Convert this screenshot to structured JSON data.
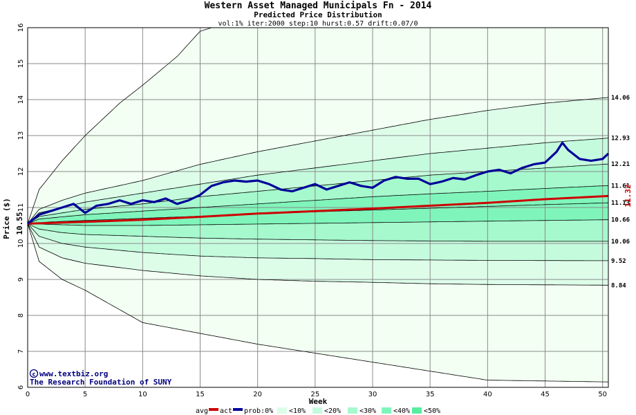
{
  "chart_data": {
    "type": "line",
    "title": "Western Asset Managed Municipals Fn - 2014",
    "subtitle": "Predicted Price Distribution",
    "params": "vol:1% iter:2000 step:10 hurst:0.57 drift:0.07/0",
    "xlabel": "Week",
    "ylabel": "Price ($)",
    "xlim": [
      0,
      50.5
    ],
    "ylim": [
      6,
      16
    ],
    "xticks": [
      0,
      5,
      10,
      15,
      20,
      25,
      30,
      35,
      40,
      45,
      50
    ],
    "yticks": [
      6,
      7,
      8,
      9,
      10,
      11,
      12,
      13,
      14,
      15,
      16
    ],
    "grid": true,
    "start_price": 10.55,
    "start_price_label": "10.55",
    "end_avg_label": "11.32",
    "band_colors": [
      "#f2fff2",
      "#ddfde9",
      "#c4fbdd",
      "#a6f8cd",
      "#80f5bb",
      "#55ee9f"
    ],
    "percentile_curves": [
      {
        "label": "",
        "points": [
          [
            0,
            10.55
          ],
          [
            1,
            11.5
          ],
          [
            3,
            12.3
          ],
          [
            5,
            13.0
          ],
          [
            8,
            13.9
          ],
          [
            10,
            14.4
          ],
          [
            13,
            15.2
          ],
          [
            15,
            15.9
          ],
          [
            16,
            16.0
          ],
          [
            50.5,
            16.0
          ]
        ]
      },
      {
        "label": "14.06",
        "points": [
          [
            0,
            10.55
          ],
          [
            1,
            10.95
          ],
          [
            3,
            11.2
          ],
          [
            5,
            11.4
          ],
          [
            10,
            11.75
          ],
          [
            15,
            12.2
          ],
          [
            20,
            12.55
          ],
          [
            25,
            12.85
          ],
          [
            30,
            13.15
          ],
          [
            35,
            13.45
          ],
          [
            40,
            13.7
          ],
          [
            45,
            13.9
          ],
          [
            50.5,
            14.06
          ]
        ]
      },
      {
        "label": "12.93",
        "points": [
          [
            0,
            10.55
          ],
          [
            1,
            10.85
          ],
          [
            3,
            11.0
          ],
          [
            5,
            11.15
          ],
          [
            10,
            11.4
          ],
          [
            15,
            11.65
          ],
          [
            20,
            11.9
          ],
          [
            25,
            12.1
          ],
          [
            30,
            12.3
          ],
          [
            35,
            12.5
          ],
          [
            40,
            12.65
          ],
          [
            45,
            12.8
          ],
          [
            50.5,
            12.93
          ]
        ]
      },
      {
        "label": "12.21",
        "points": [
          [
            0,
            10.55
          ],
          [
            1,
            10.75
          ],
          [
            3,
            10.85
          ],
          [
            5,
            10.95
          ],
          [
            10,
            11.1
          ],
          [
            15,
            11.3
          ],
          [
            20,
            11.45
          ],
          [
            25,
            11.6
          ],
          [
            30,
            11.75
          ],
          [
            35,
            11.9
          ],
          [
            40,
            12.0
          ],
          [
            45,
            12.1
          ],
          [
            50.5,
            12.21
          ]
        ]
      },
      {
        "label": "11.61",
        "points": [
          [
            0,
            10.55
          ],
          [
            1,
            10.68
          ],
          [
            3,
            10.74
          ],
          [
            5,
            10.8
          ],
          [
            10,
            10.9
          ],
          [
            15,
            11.0
          ],
          [
            20,
            11.1
          ],
          [
            25,
            11.2
          ],
          [
            30,
            11.3
          ],
          [
            35,
            11.38
          ],
          [
            40,
            11.45
          ],
          [
            45,
            11.53
          ],
          [
            50.5,
            11.61
          ]
        ]
      },
      {
        "label": "11.13",
        "points": [
          [
            0,
            10.55
          ],
          [
            2,
            10.6
          ],
          [
            5,
            10.64
          ],
          [
            10,
            10.7
          ],
          [
            15,
            10.76
          ],
          [
            20,
            10.82
          ],
          [
            25,
            10.88
          ],
          [
            30,
            10.93
          ],
          [
            35,
            10.98
          ],
          [
            40,
            11.03
          ],
          [
            45,
            11.08
          ],
          [
            50.5,
            11.13
          ]
        ]
      },
      {
        "label": "10.66",
        "points": [
          [
            0,
            10.55
          ],
          [
            5,
            10.5
          ],
          [
            10,
            10.5
          ],
          [
            15,
            10.52
          ],
          [
            20,
            10.54
          ],
          [
            25,
            10.56
          ],
          [
            30,
            10.58
          ],
          [
            35,
            10.6
          ],
          [
            40,
            10.62
          ],
          [
            45,
            10.64
          ],
          [
            50.5,
            10.66
          ]
        ]
      },
      {
        "label": "10.06",
        "points": [
          [
            0,
            10.55
          ],
          [
            1,
            10.4
          ],
          [
            3,
            10.3
          ],
          [
            5,
            10.25
          ],
          [
            10,
            10.2
          ],
          [
            15,
            10.15
          ],
          [
            20,
            10.12
          ],
          [
            25,
            10.1
          ],
          [
            30,
            10.08
          ],
          [
            35,
            10.07
          ],
          [
            40,
            10.06
          ],
          [
            50.5,
            10.06
          ]
        ]
      },
      {
        "label": "9.52",
        "points": [
          [
            0,
            10.55
          ],
          [
            1,
            10.2
          ],
          [
            3,
            10.0
          ],
          [
            5,
            9.9
          ],
          [
            10,
            9.75
          ],
          [
            15,
            9.65
          ],
          [
            20,
            9.6
          ],
          [
            25,
            9.58
          ],
          [
            30,
            9.55
          ],
          [
            35,
            9.54
          ],
          [
            40,
            9.53
          ],
          [
            50.5,
            9.52
          ]
        ]
      },
      {
        "label": "8.84",
        "points": [
          [
            0,
            10.55
          ],
          [
            1,
            9.9
          ],
          [
            3,
            9.6
          ],
          [
            5,
            9.45
          ],
          [
            10,
            9.25
          ],
          [
            15,
            9.1
          ],
          [
            20,
            9.0
          ],
          [
            25,
            8.95
          ],
          [
            30,
            8.92
          ],
          [
            35,
            8.88
          ],
          [
            40,
            8.86
          ],
          [
            50.5,
            8.84
          ]
        ]
      },
      {
        "label": "",
        "points": [
          [
            0,
            10.55
          ],
          [
            1,
            9.5
          ],
          [
            3,
            9.0
          ],
          [
            5,
            8.7
          ],
          [
            10,
            7.8
          ],
          [
            15,
            7.5
          ],
          [
            20,
            7.2
          ],
          [
            25,
            6.95
          ],
          [
            30,
            6.7
          ],
          [
            35,
            6.45
          ],
          [
            40,
            6.2
          ],
          [
            50.5,
            6.15
          ]
        ]
      }
    ],
    "series": [
      {
        "name": "avg",
        "color": "#cc0000",
        "points": [
          [
            0,
            10.55
          ],
          [
            5,
            10.6
          ],
          [
            10,
            10.66
          ],
          [
            15,
            10.74
          ],
          [
            20,
            10.83
          ],
          [
            25,
            10.9
          ],
          [
            30,
            10.97
          ],
          [
            35,
            11.05
          ],
          [
            40,
            11.13
          ],
          [
            45,
            11.23
          ],
          [
            50.5,
            11.32
          ]
        ]
      },
      {
        "name": "act",
        "color": "#000099",
        "points": [
          [
            0,
            10.55
          ],
          [
            1,
            10.8
          ],
          [
            2,
            10.9
          ],
          [
            3,
            11.0
          ],
          [
            4,
            11.1
          ],
          [
            5,
            10.85
          ],
          [
            6,
            11.05
          ],
          [
            7,
            11.1
          ],
          [
            8,
            11.2
          ],
          [
            9,
            11.1
          ],
          [
            10,
            11.2
          ],
          [
            11,
            11.15
          ],
          [
            12,
            11.25
          ],
          [
            13,
            11.1
          ],
          [
            14,
            11.2
          ],
          [
            15,
            11.35
          ],
          [
            16,
            11.6
          ],
          [
            17,
            11.7
          ],
          [
            18,
            11.75
          ],
          [
            19,
            11.72
          ],
          [
            20,
            11.75
          ],
          [
            21,
            11.65
          ],
          [
            22,
            11.5
          ],
          [
            23,
            11.45
          ],
          [
            24,
            11.55
          ],
          [
            25,
            11.65
          ],
          [
            26,
            11.5
          ],
          [
            27,
            11.6
          ],
          [
            28,
            11.7
          ],
          [
            29,
            11.6
          ],
          [
            30,
            11.55
          ],
          [
            31,
            11.75
          ],
          [
            32,
            11.85
          ],
          [
            33,
            11.8
          ],
          [
            34,
            11.8
          ],
          [
            35,
            11.65
          ],
          [
            36,
            11.72
          ],
          [
            37,
            11.82
          ],
          [
            38,
            11.78
          ],
          [
            39,
            11.9
          ],
          [
            40,
            12.0
          ],
          [
            41,
            12.05
          ],
          [
            42,
            11.95
          ],
          [
            43,
            12.1
          ],
          [
            44,
            12.2
          ],
          [
            45,
            12.25
          ],
          [
            46,
            12.55
          ],
          [
            46.5,
            12.8
          ],
          [
            47,
            12.6
          ],
          [
            48,
            12.35
          ],
          [
            49,
            12.3
          ],
          [
            50,
            12.35
          ],
          [
            50.5,
            12.5
          ]
        ]
      }
    ],
    "credit_lines": [
      "www.textbiz.org",
      "The Research Foundation of SUNY"
    ],
    "legend": {
      "avg_label": "avg",
      "act_label": "act",
      "prob_label": "prob:0%",
      "bands": [
        "<10%",
        "<20%",
        "<30%",
        "<40%",
        "<50%"
      ]
    }
  }
}
